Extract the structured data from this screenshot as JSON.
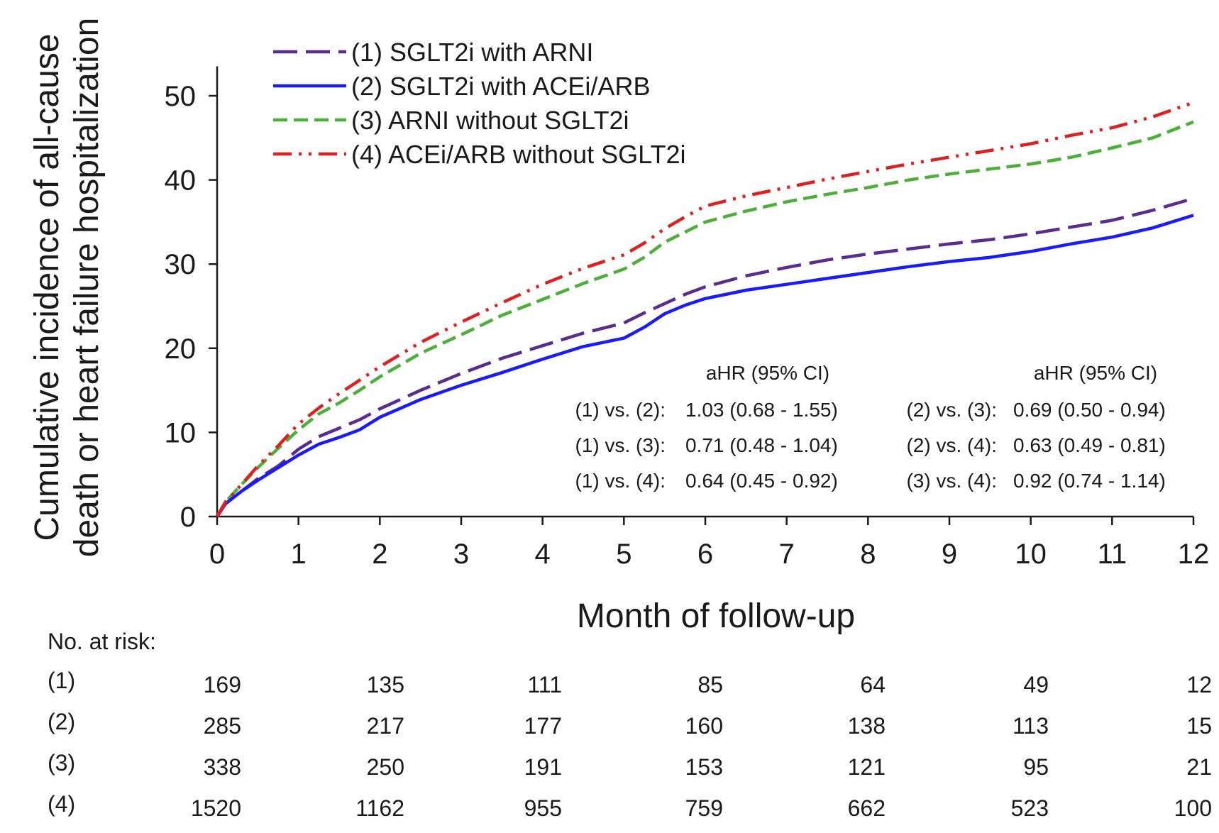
{
  "chart_data": {
    "type": "line",
    "xlabel": "Month of follow-up",
    "ylabel_lines": [
      "Cumulative incidence of all-cause",
      "death or heart failure hospitalization"
    ],
    "xlim": [
      0,
      12
    ],
    "ylim": [
      0,
      55
    ],
    "x_ticks": [
      "0",
      "1",
      "2",
      "3",
      "4",
      "5",
      "6",
      "7",
      "8",
      "9",
      "10",
      "11",
      "12"
    ],
    "y_ticks": [
      "0",
      "10",
      "20",
      "30",
      "40",
      "50"
    ],
    "grid": false,
    "legend_position": "top-left",
    "series": [
      {
        "name": "(1) SGLT2i with ARNI",
        "color": "#5b2c8f",
        "style": "long-dash",
        "x": [
          0,
          0.1,
          0.3,
          0.5,
          0.75,
          1,
          1.25,
          1.5,
          1.75,
          2,
          2.5,
          3,
          3.5,
          4,
          4.5,
          5,
          5.25,
          5.5,
          5.75,
          6,
          6.5,
          7,
          7.5,
          8,
          8.5,
          9,
          9.5,
          10,
          10.5,
          11,
          11.5,
          12
        ],
        "y": [
          0,
          1.5,
          3,
          4.5,
          6,
          8,
          9.5,
          10.5,
          11.5,
          12.8,
          15,
          17,
          18.8,
          20.3,
          21.8,
          23,
          24.2,
          25.3,
          26.4,
          27.3,
          28.6,
          29.6,
          30.5,
          31.2,
          31.8,
          32.4,
          32.9,
          33.6,
          34.4,
          35.2,
          36.4,
          37.8
        ]
      },
      {
        "name": "(2) SGLT2i with ACEi/ARB",
        "color": "#1a1aff",
        "style": "solid",
        "x": [
          0,
          0.1,
          0.3,
          0.5,
          0.75,
          1,
          1.25,
          1.5,
          1.75,
          2,
          2.5,
          3,
          3.5,
          4,
          4.5,
          5,
          5.25,
          5.5,
          5.75,
          6,
          6.5,
          7,
          7.5,
          8,
          8.5,
          9,
          9.5,
          10,
          10.5,
          11,
          11.5,
          12
        ],
        "y": [
          0,
          1.5,
          3,
          4.3,
          5.8,
          7.3,
          8.6,
          9.4,
          10.3,
          11.8,
          13.9,
          15.6,
          17.1,
          18.7,
          20.2,
          21.2,
          22.5,
          24.1,
          25.1,
          25.9,
          26.9,
          27.6,
          28.3,
          29,
          29.7,
          30.3,
          30.8,
          31.5,
          32.4,
          33.2,
          34.3,
          35.8
        ]
      },
      {
        "name": "(3) ARNI without SGLT2i",
        "color": "#4caf3a",
        "style": "short-dash",
        "x": [
          0,
          0.1,
          0.3,
          0.5,
          0.75,
          1,
          1.25,
          1.5,
          1.75,
          2,
          2.5,
          3,
          3.5,
          4,
          4.5,
          5,
          5.25,
          5.5,
          5.75,
          6,
          6.5,
          7,
          7.5,
          8,
          8.5,
          9,
          9.5,
          10,
          10.5,
          11,
          11.5,
          12
        ],
        "y": [
          0,
          1.7,
          3.8,
          5.8,
          8.1,
          10.3,
          12.2,
          13.5,
          15,
          16.6,
          19.4,
          21.6,
          23.9,
          25.8,
          27.7,
          29.4,
          30.8,
          32.6,
          33.8,
          35,
          36.3,
          37.4,
          38.3,
          39.1,
          40,
          40.7,
          41.3,
          41.9,
          42.7,
          43.8,
          45,
          46.9
        ]
      },
      {
        "name": "(4) ACEi/ARB without SGLT2i",
        "color": "#e02020",
        "style": "dash-dot-dot",
        "x": [
          0,
          0.1,
          0.3,
          0.5,
          0.75,
          1,
          1.25,
          1.5,
          1.75,
          2,
          2.5,
          3,
          3.5,
          4,
          4.5,
          5,
          5.25,
          5.5,
          5.75,
          6,
          6.5,
          7,
          7.5,
          8,
          8.5,
          9,
          9.5,
          10,
          10.5,
          11,
          11.5,
          12
        ],
        "y": [
          0,
          1.7,
          3.8,
          6,
          8.4,
          11,
          12.9,
          14.6,
          16.2,
          17.8,
          20.7,
          23.1,
          25.4,
          27.6,
          29.5,
          31.1,
          32.5,
          34.2,
          35.6,
          36.9,
          38.1,
          39.1,
          40.1,
          41,
          41.9,
          42.7,
          43.5,
          44.3,
          45.3,
          46.2,
          47.5,
          49.2
        ]
      }
    ],
    "hazard_ratios": {
      "header_left": "aHR (95% CI)",
      "header_right": "aHR (95% CI)",
      "left": [
        {
          "label": "(1) vs. (2):",
          "value": "1.03 (0.68 - 1.55)"
        },
        {
          "label": "(1) vs. (3):",
          "value": "0.71 (0.48 - 1.04)"
        },
        {
          "label": "(1) vs. (4):",
          "value": "0.64 (0.45 - 0.92)"
        }
      ],
      "right": [
        {
          "label": "(2) vs. (3):",
          "value": "0.69 (0.50 - 0.94)"
        },
        {
          "label": "(2) vs. (4):",
          "value": "0.63 (0.49 - 0.81)"
        },
        {
          "label": "(3) vs. (4):",
          "value": "0.92 (0.74 - 1.14)"
        }
      ]
    },
    "risk_table": {
      "title": "No. at risk:",
      "months": [
        0,
        2,
        4,
        6,
        8,
        10,
        12
      ],
      "rows": [
        {
          "label": "(1)",
          "values": [
            "169",
            "135",
            "111",
            "85",
            "64",
            "49",
            "12"
          ]
        },
        {
          "label": "(2)",
          "values": [
            "285",
            "217",
            "177",
            "160",
            "138",
            "113",
            "15"
          ]
        },
        {
          "label": "(3)",
          "values": [
            "338",
            "250",
            "191",
            "153",
            "121",
            "95",
            "21"
          ]
        },
        {
          "label": "(4)",
          "values": [
            "1520",
            "1162",
            "955",
            "759",
            "662",
            "523",
            "100"
          ]
        }
      ]
    }
  }
}
